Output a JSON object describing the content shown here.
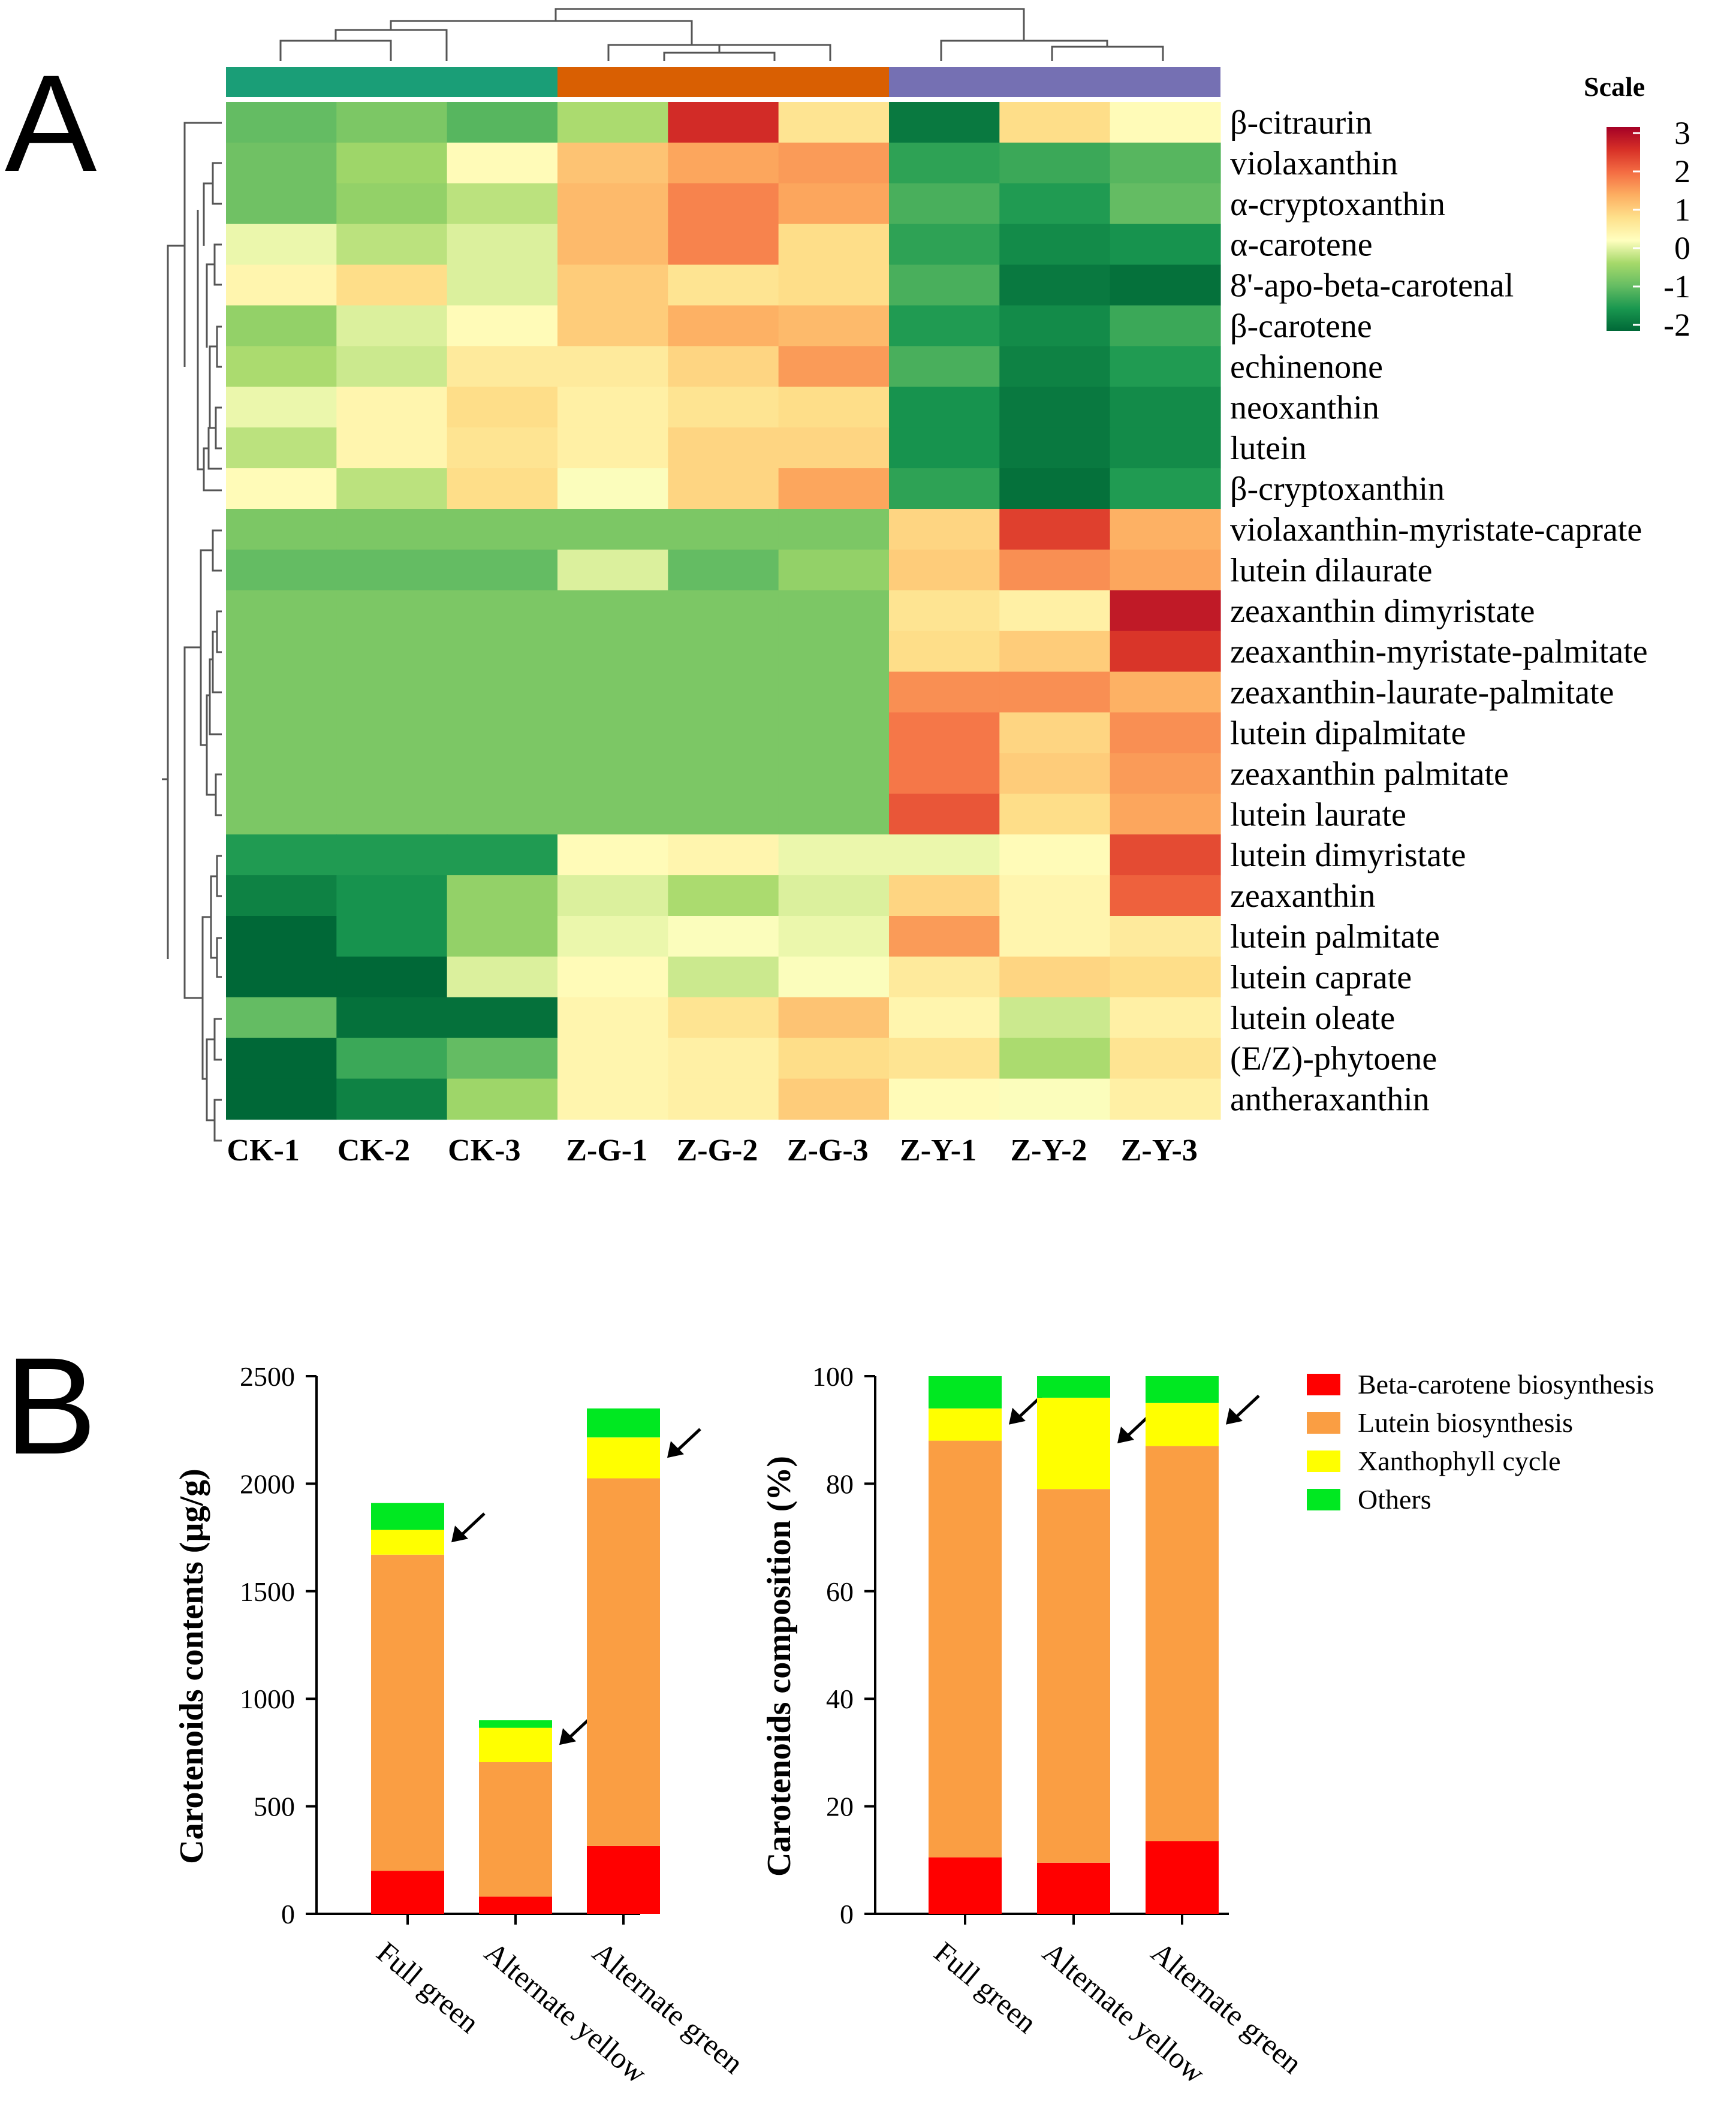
{
  "panel_a": {
    "label": "A",
    "scale_title": "Scale",
    "scale_ticks": [
      "3",
      "2",
      "1",
      "0",
      "-1",
      "-2"
    ],
    "group_colors": [
      "#1a9e77",
      "#d95f02",
      "#7570b3"
    ],
    "gradient_stops": [
      "#a50026",
      "#d73027",
      "#f46d43",
      "#fdae61",
      "#fee08b",
      "#ffffbf",
      "#a6d96a",
      "#66bd63",
      "#1a9850",
      "#006837"
    ]
  },
  "panel_b": {
    "label": "B",
    "colors": {
      "beta": "#ff0000",
      "lutein": "#fa9e43",
      "xanthophyll": "#ffff00",
      "others": "#00e821"
    },
    "legend": [
      "Beta-carotene biosynthesis",
      "Lutein biosynthesis",
      "Xanthophyll cycle",
      "Others"
    ]
  },
  "chart_data": [
    {
      "type": "heatmap",
      "title": "",
      "scale_label": "Scale",
      "color_range": [
        -2,
        3
      ],
      "columns": [
        "CK-1",
        "CK-2",
        "CK-3",
        "Z-G-1",
        "Z-G-2",
        "Z-G-3",
        "Z-Y-1",
        "Z-Y-2",
        "Z-Y-3"
      ],
      "rows": [
        "β-citraurin",
        "violaxanthin",
        "α-cryptoxanthin",
        "α-carotene",
        "8'-apo-beta-carotenal",
        "β-carotene",
        "echinenone",
        "neoxanthin",
        "lutein",
        "β-cryptoxanthin",
        "violaxanthin-myristate-caprate",
        "lutein dilaurate",
        "zeaxanthin dimyristate",
        "zeaxanthin-myristate-palmitate",
        "zeaxanthin-laurate-palmitate",
        "lutein dipalmitate",
        "zeaxanthin palmitate",
        "lutein laurate",
        "lutein dimyristate",
        "zeaxanthin",
        "lutein palmitate",
        "lutein caprate",
        "lutein oleate",
        "(E/Z)-phytoene",
        "antheraxanthin"
      ],
      "values": [
        [
          -0.9,
          -0.7,
          -1.0,
          -0.3,
          2.5,
          0.7,
          -1.8,
          0.8,
          0.3
        ],
        [
          -0.8,
          -0.4,
          0.3,
          1.1,
          1.4,
          1.5,
          -1.3,
          -1.2,
          -1.0
        ],
        [
          -0.8,
          -0.5,
          -0.2,
          1.2,
          1.7,
          1.4,
          -1.1,
          -1.4,
          -0.9
        ],
        [
          0.1,
          -0.2,
          0.0,
          1.2,
          1.7,
          0.8,
          -1.3,
          -1.6,
          -1.5
        ],
        [
          0.4,
          0.8,
          0.0,
          1.0,
          0.7,
          0.8,
          -1.1,
          -1.8,
          -1.9
        ],
        [
          -0.5,
          0.0,
          0.3,
          1.0,
          1.3,
          1.2,
          -1.4,
          -1.6,
          -1.2
        ],
        [
          -0.3,
          -0.1,
          0.6,
          0.6,
          0.9,
          1.5,
          -1.1,
          -1.7,
          -1.4
        ],
        [
          0.1,
          0.4,
          0.8,
          0.5,
          0.7,
          0.8,
          -1.5,
          -1.8,
          -1.6
        ],
        [
          -0.2,
          0.4,
          0.7,
          0.5,
          0.9,
          0.9,
          -1.5,
          -1.8,
          -1.6
        ],
        [
          0.3,
          -0.2,
          0.8,
          0.2,
          0.9,
          1.4,
          -1.3,
          -1.9,
          -1.4
        ],
        [
          -0.7,
          -0.7,
          -0.7,
          -0.7,
          -0.7,
          -0.7,
          0.9,
          2.3,
          1.3
        ],
        [
          -0.9,
          -0.9,
          -0.9,
          0.0,
          -0.9,
          -0.5,
          1.0,
          1.6,
          1.4
        ],
        [
          -0.7,
          -0.7,
          -0.7,
          -0.7,
          -0.7,
          -0.7,
          0.7,
          0.5,
          2.7
        ],
        [
          -0.7,
          -0.7,
          -0.7,
          -0.7,
          -0.7,
          -0.7,
          0.8,
          1.0,
          2.4
        ],
        [
          -0.7,
          -0.7,
          -0.7,
          -0.7,
          -0.7,
          -0.7,
          1.6,
          1.6,
          1.3
        ],
        [
          -0.7,
          -0.7,
          -0.7,
          -0.7,
          -0.7,
          -0.7,
          1.8,
          0.9,
          1.6
        ],
        [
          -0.7,
          -0.7,
          -0.7,
          -0.7,
          -0.7,
          -0.7,
          1.8,
          1.0,
          1.5
        ],
        [
          -0.7,
          -0.7,
          -0.7,
          -0.7,
          -0.7,
          -0.7,
          2.1,
          0.8,
          1.4
        ],
        [
          -1.4,
          -1.4,
          -1.4,
          0.3,
          0.4,
          0.1,
          0.1,
          0.3,
          2.2
        ],
        [
          -1.7,
          -1.5,
          -0.5,
          0.0,
          -0.3,
          0.0,
          0.9,
          0.4,
          2.0
        ],
        [
          -2.3,
          -1.5,
          -0.5,
          0.1,
          0.2,
          0.1,
          1.5,
          0.4,
          0.6
        ],
        [
          -2.1,
          -2.1,
          0.0,
          0.3,
          -0.1,
          0.2,
          0.6,
          0.9,
          0.8
        ],
        [
          -0.9,
          -1.9,
          -1.9,
          0.4,
          0.7,
          1.1,
          0.4,
          -0.1,
          0.5
        ],
        [
          -2.2,
          -1.2,
          -0.9,
          0.4,
          0.5,
          0.8,
          0.7,
          -0.3,
          0.7
        ],
        [
          -2.3,
          -1.7,
          -0.4,
          0.4,
          0.5,
          1.0,
          0.3,
          0.2,
          0.5
        ]
      ]
    },
    {
      "type": "bar",
      "stacked": true,
      "title": "",
      "xlabel": "",
      "ylabel": "Carotenoids contents (µg/g)",
      "ylim": [
        0,
        2500
      ],
      "yticks": [
        0,
        500,
        1000,
        1500,
        2000,
        2500
      ],
      "categories": [
        "Full green",
        "Alternate yellow",
        "Alternate green"
      ],
      "series": [
        {
          "name": "Beta-carotene biosynthesis",
          "values": [
            200,
            80,
            315
          ]
        },
        {
          "name": "Lutein biosynthesis",
          "values": [
            1470,
            625,
            1710
          ]
        },
        {
          "name": "Xanthophyll cycle",
          "values": [
            115,
            160,
            190
          ]
        },
        {
          "name": "Others",
          "values": [
            125,
            35,
            135
          ]
        }
      ],
      "annotation": "arrow pointing to Xanthophyll cycle segment"
    },
    {
      "type": "bar",
      "stacked": true,
      "title": "",
      "xlabel": "",
      "ylabel": "Carotenoids composition (%)",
      "ylim": [
        0,
        100
      ],
      "yticks": [
        0,
        20,
        40,
        60,
        80,
        100
      ],
      "categories": [
        "Full green",
        "Alternate yellow",
        "Alternate green"
      ],
      "series": [
        {
          "name": "Beta-carotene biosynthesis",
          "values": [
            10.5,
            9.5,
            13.5
          ]
        },
        {
          "name": "Lutein biosynthesis",
          "values": [
            77.5,
            69.5,
            73.5
          ]
        },
        {
          "name": "Xanthophyll cycle",
          "values": [
            6.0,
            17.0,
            8.0
          ]
        },
        {
          "name": "Others",
          "values": [
            6.0,
            4.0,
            5.0
          ]
        }
      ],
      "legend_position": "right",
      "annotation": "arrow pointing to Xanthophyll cycle segment"
    }
  ]
}
